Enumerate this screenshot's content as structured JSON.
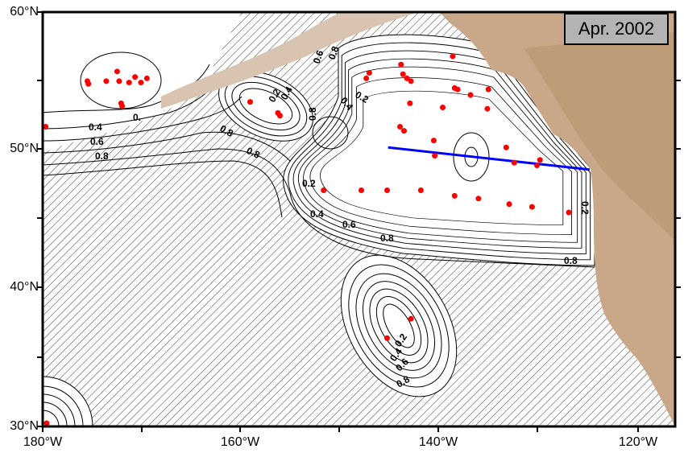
{
  "title": "Apr. 2002",
  "axes": {
    "y_ticks": [
      "60°N",
      "50°N",
      "40°N",
      "30°N"
    ],
    "x_ticks": [
      "180°W",
      "160°W",
      "140°W",
      "120°W"
    ],
    "lon_range": [
      -180,
      -116
    ],
    "lat_range": [
      30,
      60
    ]
  },
  "contour_labels": [
    "0.2",
    "0.4",
    "0.6",
    "0.8",
    "0."
  ],
  "colors": {
    "stations": "#ff0000",
    "section_line": "#0000ff",
    "land": "#c8a888",
    "hatch": "#000000"
  },
  "section_line": {
    "start": [
      -145.2,
      50.2
    ],
    "end": [
      -124.9,
      48.6
    ]
  },
  "stations": [
    [
      -179.7,
      51.7
    ],
    [
      -175.5,
      55.0
    ],
    [
      -175.4,
      54.8
    ],
    [
      -173.6,
      55.0
    ],
    [
      -172.5,
      55.7
    ],
    [
      -172.3,
      55.0
    ],
    [
      -171.3,
      54.9
    ],
    [
      -170.7,
      55.3
    ],
    [
      -170.1,
      54.9
    ],
    [
      -169.5,
      55.2
    ],
    [
      -172.1,
      53.4
    ],
    [
      -172.0,
      53.2
    ],
    [
      -159.1,
      53.5
    ],
    [
      -156.3,
      52.7
    ],
    [
      -156.1,
      52.5
    ],
    [
      -147.1,
      55.6
    ],
    [
      -147.4,
      55.2
    ],
    [
      -143.9,
      56.2
    ],
    [
      -143.7,
      55.5
    ],
    [
      -143.3,
      55.2
    ],
    [
      -142.9,
      55.0
    ],
    [
      -143.0,
      53.4
    ],
    [
      -144.0,
      51.7
    ],
    [
      -143.6,
      51.4
    ],
    [
      -140.6,
      50.7
    ],
    [
      -140.5,
      49.6
    ],
    [
      -138.7,
      56.8
    ],
    [
      -138.5,
      54.5
    ],
    [
      -138.2,
      54.4
    ],
    [
      -139.7,
      53.1
    ],
    [
      -136.9,
      54.0
    ],
    [
      -135.1,
      54.4
    ],
    [
      -135.2,
      53.0
    ],
    [
      -133.3,
      50.2
    ],
    [
      -132.5,
      49.1
    ],
    [
      -130.2,
      48.9
    ],
    [
      -129.9,
      49.3
    ],
    [
      -151.7,
      47.1
    ],
    [
      -147.9,
      47.1
    ],
    [
      -145.3,
      47.1
    ],
    [
      -141.9,
      47.1
    ],
    [
      -138.5,
      46.7
    ],
    [
      -136.1,
      46.5
    ],
    [
      -133.0,
      46.1
    ],
    [
      -130.7,
      45.9
    ],
    [
      -127.0,
      45.5
    ],
    [
      -145.3,
      36.4
    ],
    [
      -142.9,
      37.8
    ],
    [
      -179.6,
      30.1
    ]
  ]
}
